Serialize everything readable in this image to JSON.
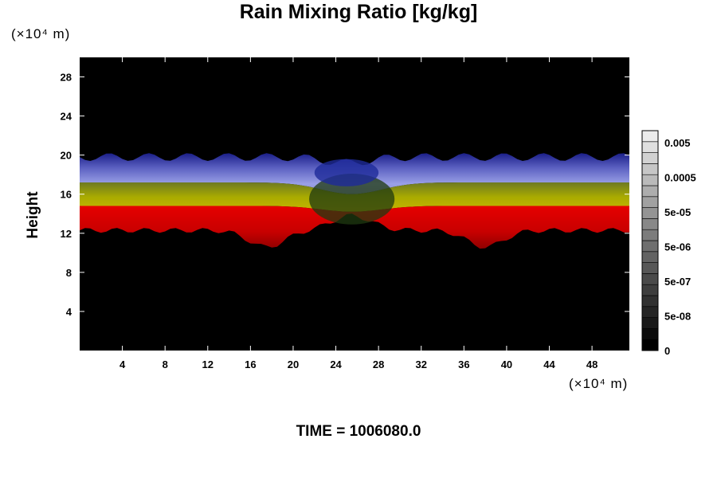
{
  "chart_data": {
    "type": "heatmap",
    "title": "Rain Mixing Ratio [kg/kg]",
    "ylabel": "Height",
    "x_unit": "(×10⁴ m)",
    "y_unit": "(×10⁴ m)",
    "xlim": [
      0,
      51.5
    ],
    "ylim": [
      0,
      30
    ],
    "x_ticks": [
      4,
      8,
      12,
      16,
      20,
      24,
      28,
      32,
      36,
      40,
      44,
      48
    ],
    "y_ticks": [
      4,
      8,
      12,
      16,
      20,
      24,
      28
    ],
    "colorbar": {
      "labels": [
        "0.005",
        "0.0005",
        "5e-05",
        "5e-06",
        "5e-07",
        "5e-08",
        "0"
      ],
      "levels": 20
    },
    "bands": [
      {
        "name": "red",
        "color": "#cc0000",
        "y_bottom": 12.3,
        "y_top": 14.8,
        "dip_bottom": 10.6
      },
      {
        "name": "yellow",
        "color": "#a8a800",
        "y_bottom": 14.8,
        "y_top": 17.2
      },
      {
        "name": "blue",
        "color": "#7a7fd8",
        "y_bottom": 17.2,
        "y_top": 19.8
      }
    ],
    "annotation": "TIME = 1006080.0"
  }
}
